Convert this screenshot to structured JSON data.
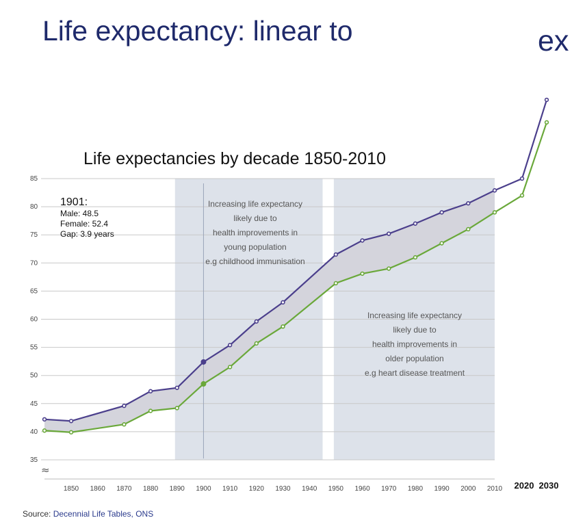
{
  "slide": {
    "title": "Life expectancy: linear to",
    "title_cut": "ex"
  },
  "source": {
    "label": "Source:",
    "value": "Decennial Life Tables, ONS"
  },
  "colors": {
    "male": "#4b3f8c",
    "female": "#6aa83a",
    "band": "#dde2ea",
    "gap_fill": "#d4d4dc",
    "grid": "#c8c8c8",
    "title": "#1f2a6b"
  },
  "chart_data": {
    "type": "line",
    "title": "Life expectancies by decade 1850-2010",
    "x": [
      1840,
      1850,
      1870,
      1880,
      1890,
      1900,
      1910,
      1920,
      1930,
      1950,
      1960,
      1970,
      1980,
      1990,
      2000,
      2010,
      2020,
      2030
    ],
    "series": [
      {
        "name": "Male",
        "values": [
          40.2,
          39.9,
          41.3,
          43.7,
          44.2,
          48.5,
          51.5,
          55.7,
          58.7,
          66.4,
          68.1,
          69.0,
          71.0,
          73.5,
          76.0,
          79.0,
          82.0,
          95.0
        ]
      },
      {
        "name": "Female",
        "values": [
          42.2,
          41.9,
          44.6,
          47.2,
          47.8,
          52.4,
          55.4,
          59.6,
          63.0,
          71.5,
          74.0,
          75.2,
          77.0,
          79.0,
          80.6,
          82.9,
          85.0,
          99.0
        ]
      }
    ],
    "ylim": [
      35,
      85
    ],
    "yticks": [
      "35",
      "40",
      "45",
      "50",
      "55",
      "60",
      "65",
      "70",
      "75",
      "80",
      "85"
    ],
    "xticks": [
      "1850",
      "1860",
      "1870",
      "1880",
      "1890",
      "1900",
      "1910",
      "1920",
      "1930",
      "1940",
      "1950",
      "1960",
      "1970",
      "1980",
      "1990",
      "2000",
      "2010"
    ],
    "xticks_extra": [
      "2020",
      "2030"
    ],
    "axis_break_symbol": "≈",
    "shaded_bands": [
      [
        1890,
        1945
      ],
      [
        1950,
        2010
      ]
    ],
    "marker_line_x": 1900,
    "annotation_1901": {
      "title": "1901:",
      "lines": [
        "Male: 48.5",
        "Female: 52.4",
        "Gap: 3.9 years"
      ]
    },
    "annotation_young": [
      "Increasing life expectancy",
      "likely due to",
      "health improvements in",
      "young population",
      "e.g childhood immunisation"
    ],
    "annotation_older": [
      "Increasing life expectancy",
      "likely due to",
      "health improvements in",
      "older population",
      "e.g heart disease treatment"
    ],
    "grid": true,
    "legend": "none"
  }
}
